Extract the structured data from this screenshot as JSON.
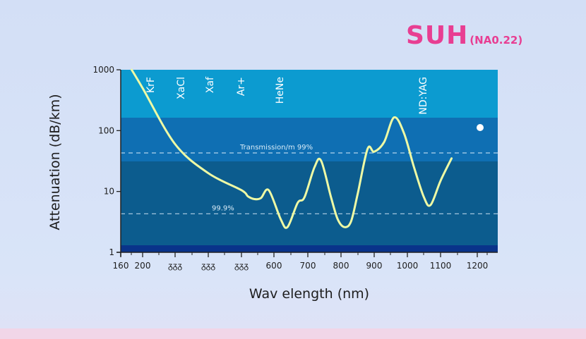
{
  "header": {
    "title": "SUH",
    "subtitle": "(NA0.22)"
  },
  "colors": {
    "band_top": "#0c9bd0",
    "band_mid": "#0f6fb3",
    "band_main": "#0c5c8e",
    "band_bottom": "#09338a",
    "curve": "#eefaa5",
    "title": "#e83e92",
    "axis_text": "#1d1d1d"
  },
  "chart_data": {
    "type": "line",
    "xlabel": "Wav elength (nm)",
    "ylabel": "Attenuation (dB/km)",
    "yscale": "log",
    "xlim": [
      160,
      1250
    ],
    "ylim": [
      1,
      1000
    ],
    "x_ticks": [
      160,
      200,
      250,
      300,
      350,
      400,
      500,
      600,
      700,
      800,
      900,
      1000,
      1100,
      1200
    ],
    "x_tick_labels": [
      "160",
      "200",
      "ᵹᵹᵹ",
      "ᵹᵹᵹ",
      "ᵹᵹᵹ",
      "",
      "",
      "600",
      "700",
      "800",
      "900",
      "1000",
      "1100",
      "1200"
    ],
    "y_ticks": [
      1,
      10,
      100,
      1000
    ],
    "y_tick_labels": [
      "1",
      "10",
      "100",
      "1000"
    ],
    "laser_lines": [
      {
        "label": "KrF",
        "x": 248
      },
      {
        "label": "XaCl",
        "x": 308
      },
      {
        "label": "Xaf",
        "x": 351
      },
      {
        "label": "Ar+",
        "x": 488
      },
      {
        "label": "HeNe",
        "x": 633
      },
      {
        "label": "ND:YAG",
        "x": 1064
      }
    ],
    "reference_lines": [
      {
        "label": "Transmission/m 99%",
        "y": 43
      },
      {
        "label": "99.9%",
        "y": 4.3
      }
    ],
    "series": [
      {
        "values": [
          [
            180,
            1000
          ],
          [
            200,
            500
          ],
          [
            250,
            60
          ],
          [
            300,
            20
          ],
          [
            350,
            10.5
          ],
          [
            400,
            8.3
          ],
          [
            450,
            7.5
          ],
          [
            500,
            7.8
          ],
          [
            560,
            10.5
          ],
          [
            620,
            3.5
          ],
          [
            640,
            2.6
          ],
          [
            670,
            6.5
          ],
          [
            690,
            8
          ],
          [
            720,
            25
          ],
          [
            740,
            32
          ],
          [
            770,
            8
          ],
          [
            790,
            3.5
          ],
          [
            810,
            2.6
          ],
          [
            830,
            3.2
          ],
          [
            850,
            9
          ],
          [
            880,
            50
          ],
          [
            900,
            45
          ],
          [
            930,
            65
          ],
          [
            960,
            165
          ],
          [
            990,
            90
          ],
          [
            1020,
            25
          ],
          [
            1050,
            8
          ],
          [
            1070,
            6
          ],
          [
            1100,
            15
          ],
          [
            1130,
            35
          ]
        ]
      }
    ]
  }
}
